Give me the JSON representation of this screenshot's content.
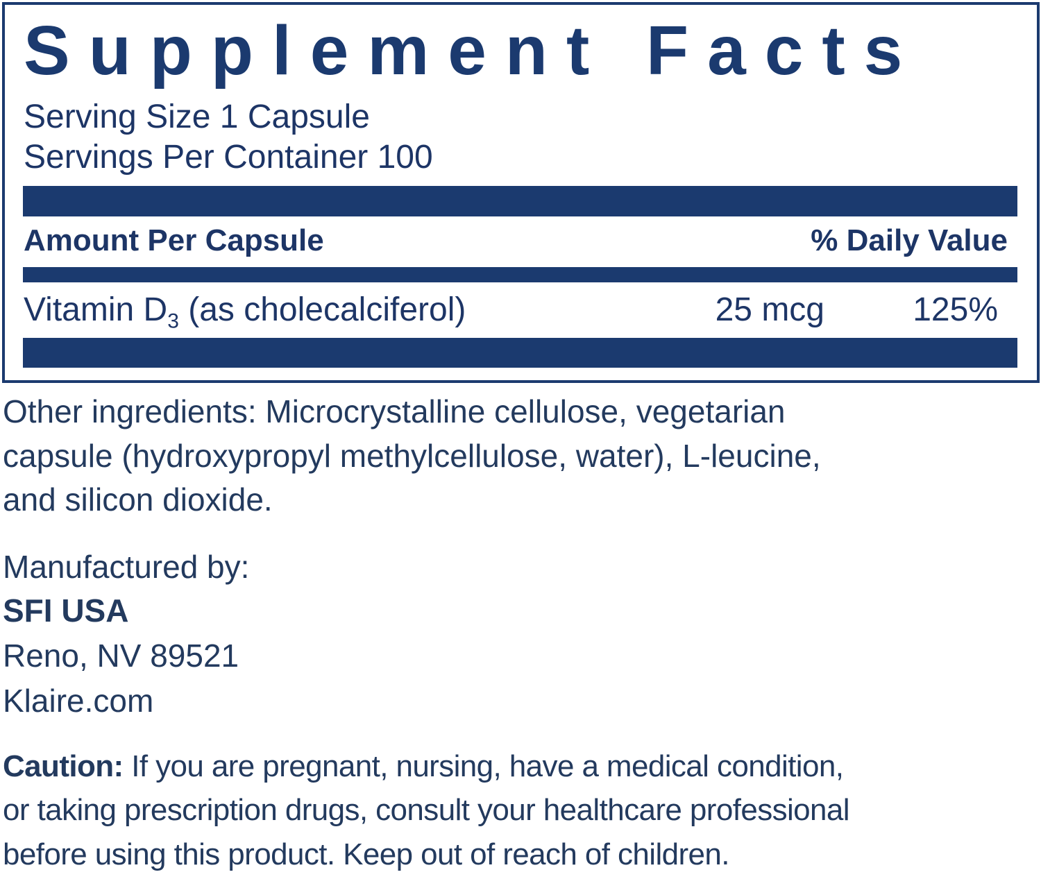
{
  "panel": {
    "title": "Supplement Facts",
    "serving_size": "Serving Size 1 Capsule",
    "servings_per_container": "Servings Per Container 100",
    "header": {
      "amount": "Amount Per Capsule",
      "daily_value": "% Daily Value"
    },
    "rows": [
      {
        "name": "Vitamin D",
        "subscript": "3",
        "detail": "(as cholecalciferol)",
        "amount": "25 mcg",
        "daily_value": "125%"
      }
    ]
  },
  "other_ingredients": {
    "lines": [
      "Other ingredients: Microcrystalline cellulose, vegetarian",
      "capsule (hydroxypropyl methylcellulose, water), L-leucine,",
      "and silicon dioxide."
    ]
  },
  "manufacturer": {
    "label": "Manufactured by:",
    "name": "SFI USA",
    "address": "Reno, NV 89521",
    "website": "Klaire.com"
  },
  "caution": {
    "label": "Caution:",
    "lines": [
      " If you are pregnant, nursing, have a medical condition,",
      "or taking prescription drugs, consult your healthcare professional",
      "before using this product. Keep out of reach of children."
    ]
  }
}
